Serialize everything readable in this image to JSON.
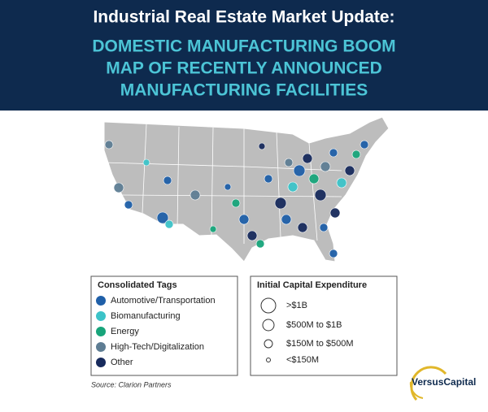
{
  "header": {
    "title": "Industrial Real Estate Market Update:",
    "subtitle": [
      "DOMESTIC MANUFACTURING BOOM",
      "MAP OF RECENTLY ANNOUNCED",
      "MANUFACTURING FACILITIES"
    ]
  },
  "legend_tags": {
    "title": "Consolidated Tags",
    "items": [
      {
        "label": "Automotive/Transportation",
        "color": "#1f5fa8"
      },
      {
        "label": "Biomanufacturing",
        "color": "#3cc3c8"
      },
      {
        "label": "Energy",
        "color": "#17a47a"
      },
      {
        "label": "High-Tech/Digitalization",
        "color": "#5e7d93"
      },
      {
        "label": "Other",
        "color": "#172a5c"
      }
    ]
  },
  "legend_capital": {
    "title": "Initial Capital Expenditure",
    "items": [
      ">$1B",
      "$500M to $1B",
      "$150M to $500M",
      "<$150M"
    ]
  },
  "source": "Source: Clarion Partners",
  "logo": "VersusCapital"
}
